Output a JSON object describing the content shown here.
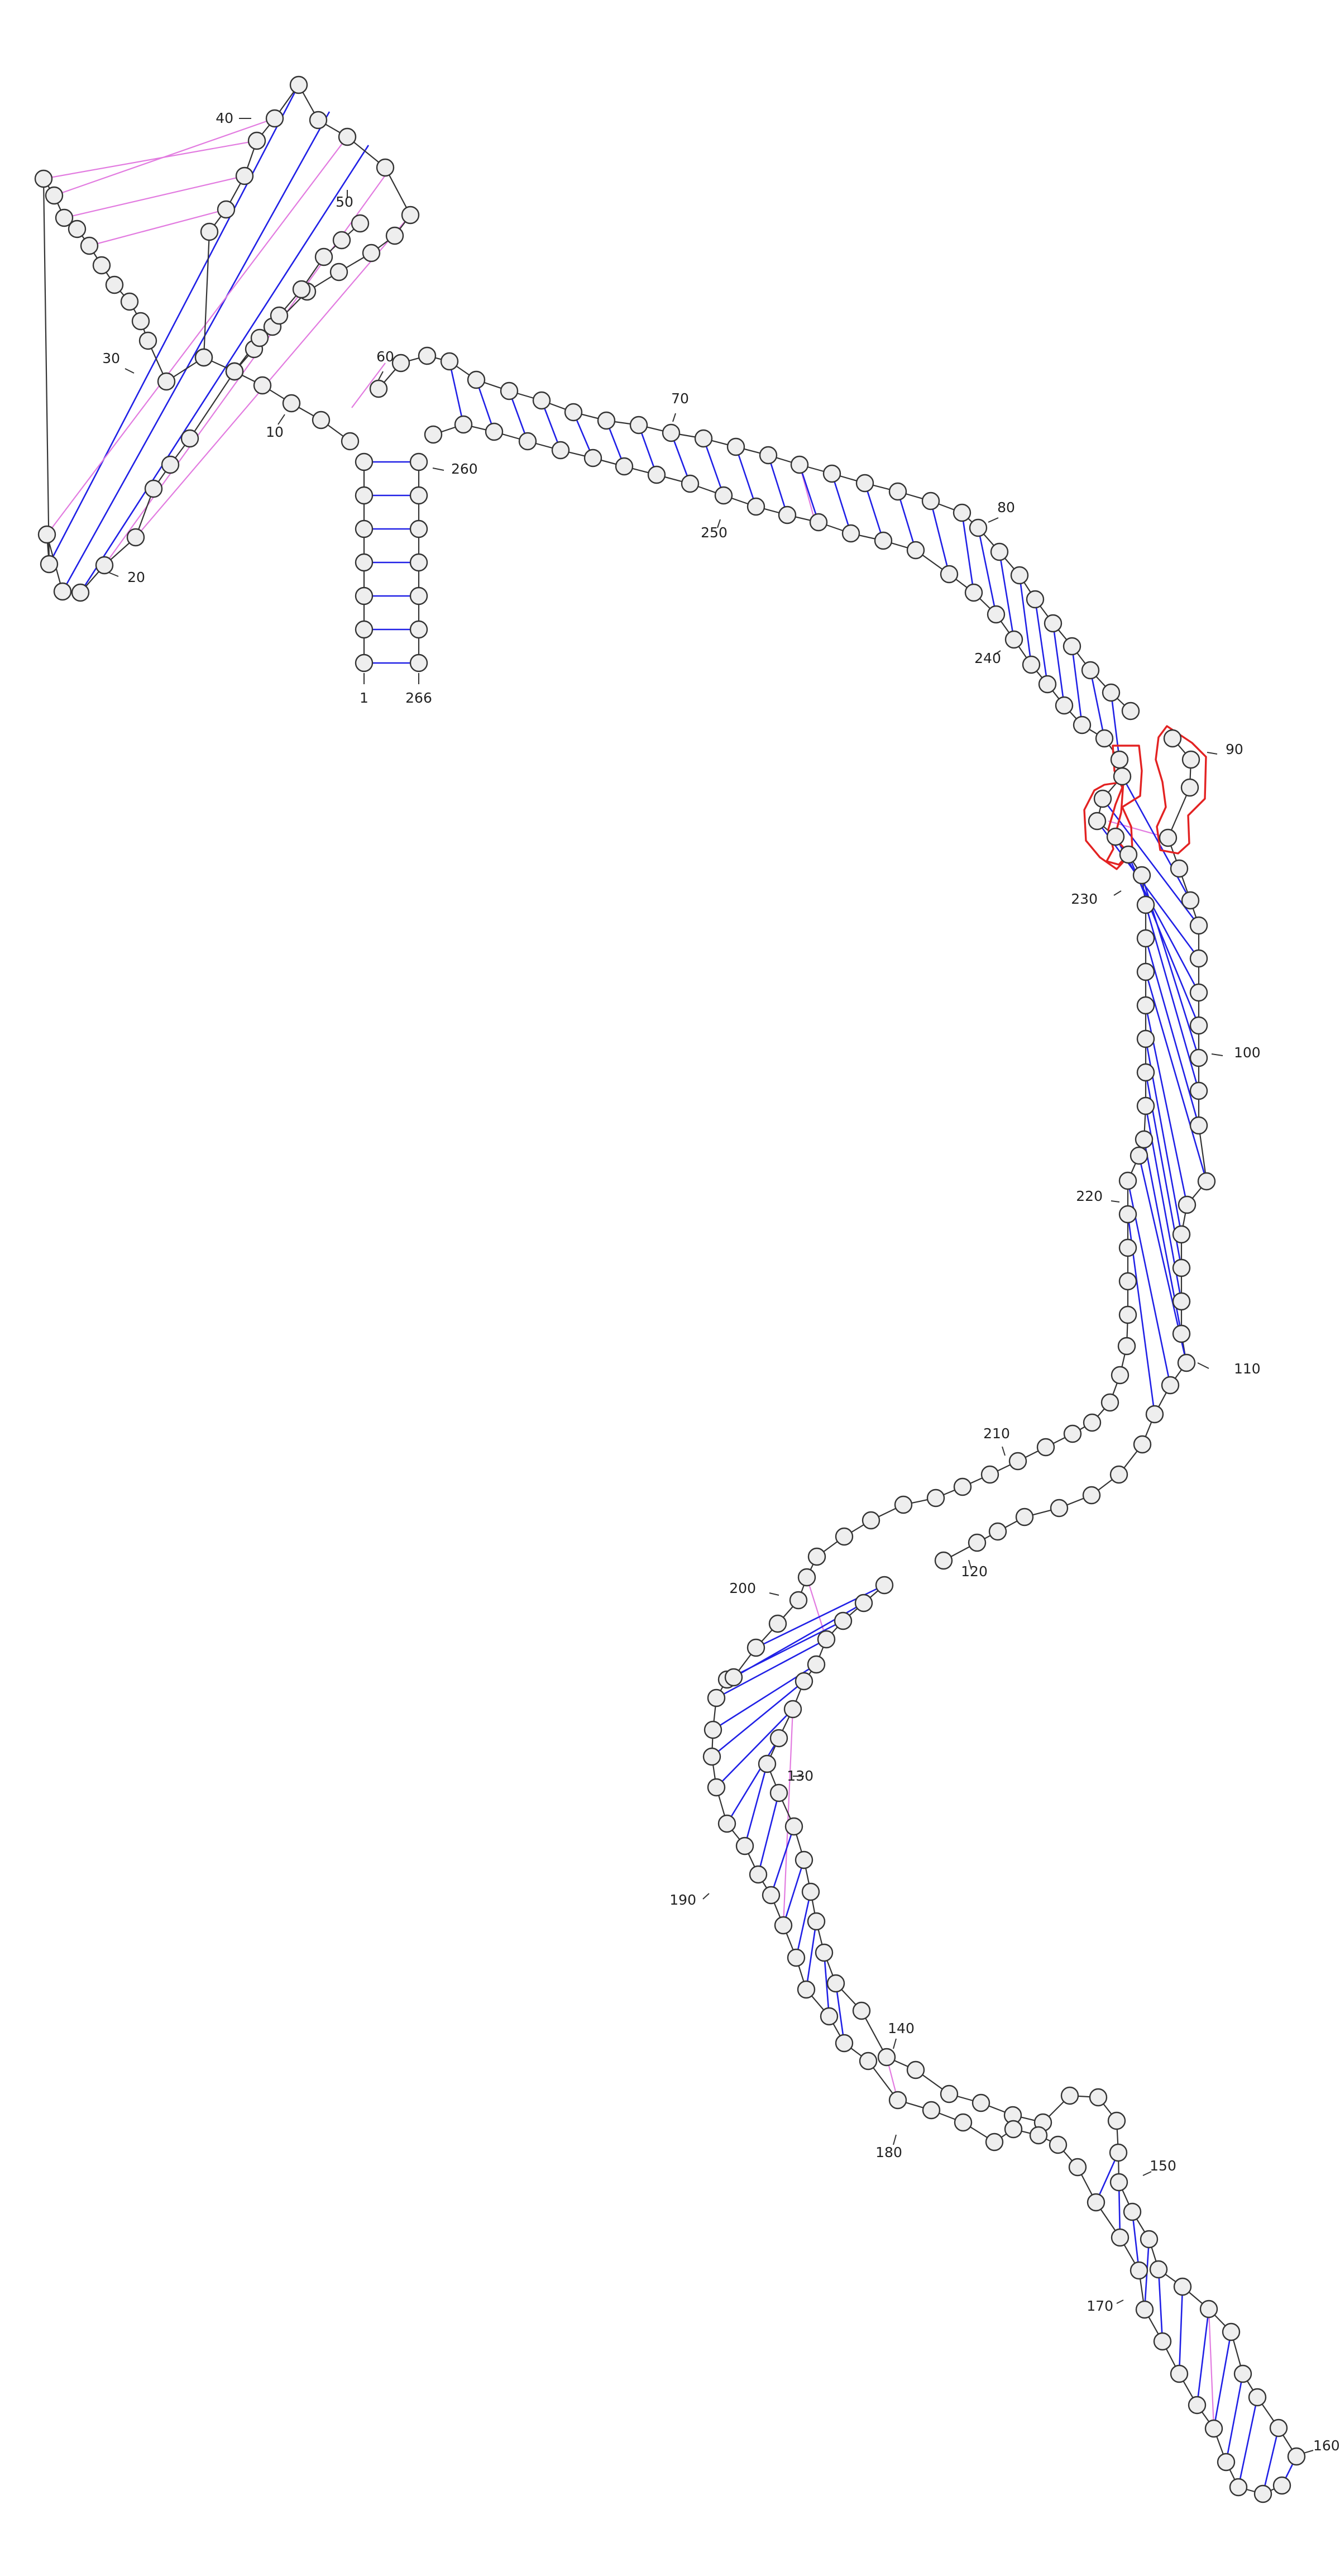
{
  "diagram": {
    "type": "rna-secondary-structure",
    "sequence_length": 266,
    "colors": {
      "backbone": "#333333",
      "canonical_pair": "#2020e6",
      "noncanonical_pair": "#e27be0",
      "nucleotide_fill": "#eeeeee",
      "highlight": "#e32222"
    },
    "position_labels": [
      "1",
      "10",
      "20",
      "30",
      "40",
      "50",
      "60",
      "70",
      "80",
      "90",
      "100",
      "110",
      "120",
      "130",
      "140",
      "150",
      "160",
      "170",
      "180",
      "190",
      "200",
      "210",
      "220",
      "230",
      "240",
      "250",
      "260",
      "266"
    ]
  }
}
